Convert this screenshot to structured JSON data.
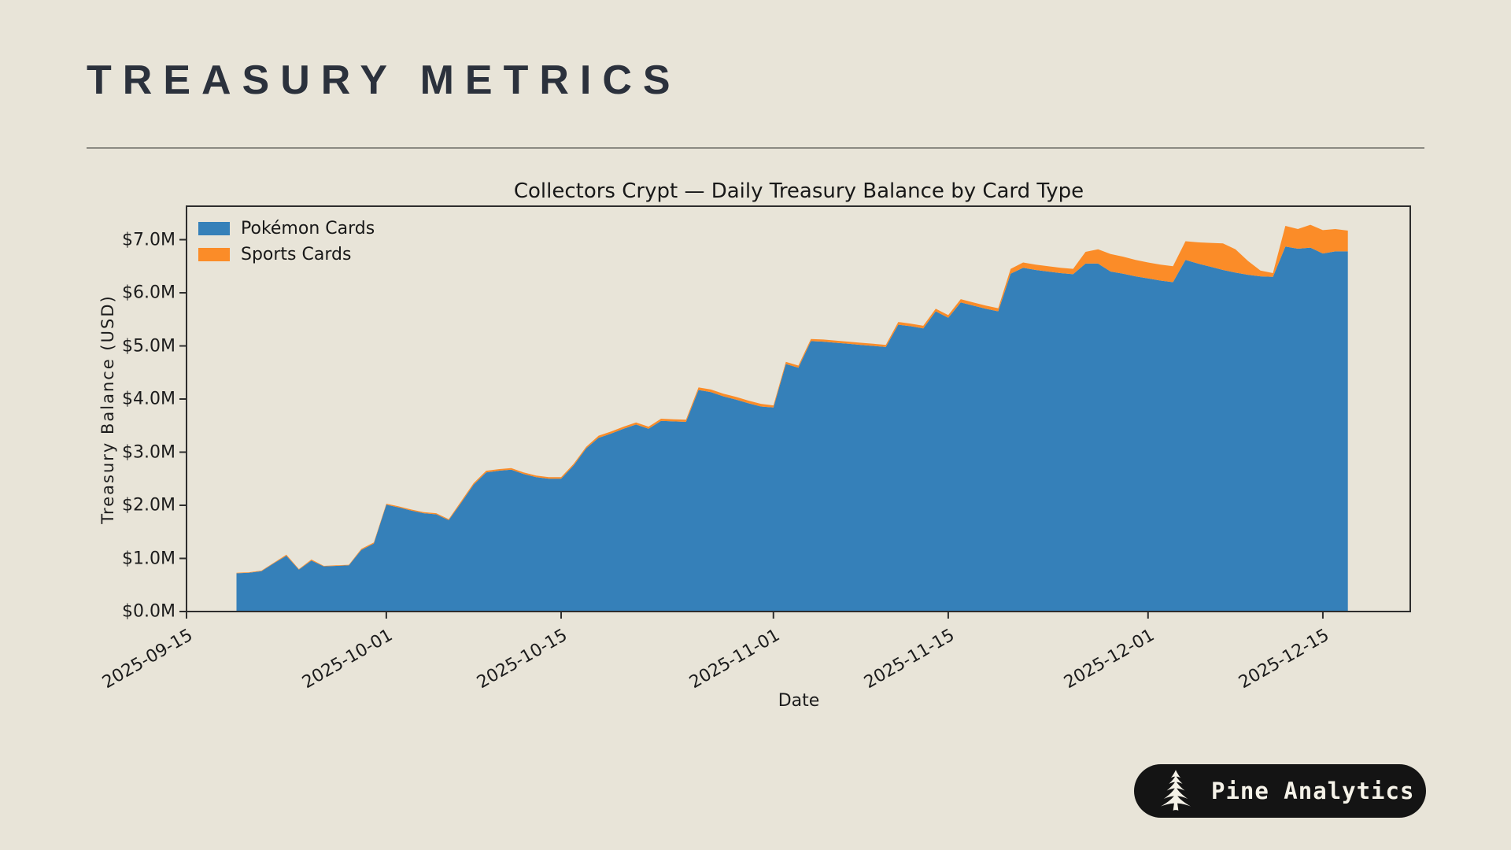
{
  "header": {
    "title": "TREASURY METRICS"
  },
  "badge": {
    "label": "Pine Analytics",
    "icon": "pine-tree-icon",
    "bg_color": "#141414",
    "text_color": "#f5f2e8"
  },
  "page_background": "#e8e4d8",
  "chart_data": {
    "type": "area",
    "stacked": true,
    "title": "Collectors Crypt — Daily Treasury Balance by Card Type",
    "xlabel": "Date",
    "ylabel": "Treasury Balance (USD)",
    "grid": false,
    "legend_position": "upper left",
    "xlim": [
      "2025-09-15",
      "2025-12-22"
    ],
    "ylim": [
      0,
      7.63
    ],
    "x_ticks": [
      "2025-09-15",
      "2025-10-01",
      "2025-10-15",
      "2025-11-01",
      "2025-11-15",
      "2025-12-01",
      "2025-12-15"
    ],
    "y_tick_values": [
      0,
      1,
      2,
      3,
      4,
      5,
      6,
      7
    ],
    "y_tick_labels": [
      "$0.0M",
      "$1.0M",
      "$2.0M",
      "$3.0M",
      "$4.0M",
      "$5.0M",
      "$6.0M",
      "$7.0M"
    ],
    "axis_color": "#2d2d2d",
    "x": [
      "2025-09-19",
      "2025-09-20",
      "2025-09-21",
      "2025-09-22",
      "2025-09-23",
      "2025-09-24",
      "2025-09-25",
      "2025-09-26",
      "2025-09-27",
      "2025-09-28",
      "2025-09-29",
      "2025-09-30",
      "2025-10-01",
      "2025-10-02",
      "2025-10-03",
      "2025-10-04",
      "2025-10-05",
      "2025-10-06",
      "2025-10-07",
      "2025-10-08",
      "2025-10-09",
      "2025-10-10",
      "2025-10-11",
      "2025-10-12",
      "2025-10-13",
      "2025-10-14",
      "2025-10-15",
      "2025-10-16",
      "2025-10-17",
      "2025-10-18",
      "2025-10-19",
      "2025-10-20",
      "2025-10-21",
      "2025-10-22",
      "2025-10-23",
      "2025-10-24",
      "2025-10-25",
      "2025-10-26",
      "2025-10-27",
      "2025-10-28",
      "2025-10-29",
      "2025-10-30",
      "2025-10-31",
      "2025-11-01",
      "2025-11-02",
      "2025-11-03",
      "2025-11-04",
      "2025-11-05",
      "2025-11-06",
      "2025-11-07",
      "2025-11-08",
      "2025-11-09",
      "2025-11-10",
      "2025-11-11",
      "2025-11-12",
      "2025-11-13",
      "2025-11-14",
      "2025-11-15",
      "2025-11-16",
      "2025-11-17",
      "2025-11-18",
      "2025-11-19",
      "2025-11-20",
      "2025-11-21",
      "2025-11-22",
      "2025-11-23",
      "2025-11-24",
      "2025-11-25",
      "2025-11-26",
      "2025-11-27",
      "2025-11-28",
      "2025-11-29",
      "2025-11-30",
      "2025-12-01",
      "2025-12-02",
      "2025-12-03",
      "2025-12-04",
      "2025-12-05",
      "2025-12-06",
      "2025-12-07",
      "2025-12-08",
      "2025-12-09",
      "2025-12-10",
      "2025-12-11",
      "2025-12-12",
      "2025-12-13",
      "2025-12-14",
      "2025-12-15",
      "2025-12-16",
      "2025-12-17"
    ],
    "series": [
      {
        "name": "Pokémon Cards",
        "color": "#3580b9",
        "values": [
          0.72,
          0.73,
          0.76,
          0.91,
          1.05,
          0.79,
          0.96,
          0.85,
          0.86,
          0.87,
          1.16,
          1.28,
          2.01,
          1.96,
          1.9,
          1.85,
          1.83,
          1.72,
          2.05,
          2.39,
          2.62,
          2.65,
          2.67,
          2.59,
          2.53,
          2.5,
          2.5,
          2.75,
          3.07,
          3.27,
          3.35,
          3.44,
          3.52,
          3.44,
          3.59,
          3.58,
          3.57,
          4.17,
          4.13,
          4.05,
          3.99,
          3.92,
          3.86,
          3.84,
          4.66,
          4.59,
          5.09,
          5.08,
          5.06,
          5.04,
          5.02,
          5.0,
          4.98,
          5.4,
          5.37,
          5.33,
          5.65,
          5.53,
          5.82,
          5.76,
          5.7,
          5.65,
          6.36,
          6.47,
          6.43,
          6.4,
          6.37,
          6.35,
          6.55,
          6.55,
          6.4,
          6.36,
          6.31,
          6.27,
          6.23,
          6.2,
          6.62,
          6.55,
          6.49,
          6.43,
          6.38,
          6.34,
          6.31,
          6.3,
          6.87,
          6.83,
          6.85,
          6.74,
          6.78,
          6.78
        ]
      },
      {
        "name": "Sports Cards",
        "color": "#fb8c28",
        "values": [
          0.01,
          0.01,
          0.01,
          0.01,
          0.02,
          0.01,
          0.02,
          0.01,
          0.01,
          0.01,
          0.02,
          0.02,
          0.02,
          0.02,
          0.02,
          0.02,
          0.02,
          0.02,
          0.03,
          0.03,
          0.03,
          0.03,
          0.03,
          0.03,
          0.03,
          0.03,
          0.03,
          0.03,
          0.03,
          0.04,
          0.04,
          0.04,
          0.04,
          0.04,
          0.04,
          0.04,
          0.04,
          0.05,
          0.05,
          0.05,
          0.05,
          0.05,
          0.05,
          0.04,
          0.04,
          0.04,
          0.04,
          0.04,
          0.04,
          0.04,
          0.04,
          0.04,
          0.04,
          0.05,
          0.05,
          0.05,
          0.05,
          0.05,
          0.06,
          0.06,
          0.06,
          0.06,
          0.09,
          0.1,
          0.1,
          0.1,
          0.1,
          0.1,
          0.22,
          0.27,
          0.33,
          0.32,
          0.31,
          0.3,
          0.3,
          0.3,
          0.35,
          0.4,
          0.45,
          0.5,
          0.44,
          0.26,
          0.11,
          0.07,
          0.39,
          0.37,
          0.43,
          0.44,
          0.42,
          0.39
        ]
      }
    ]
  }
}
